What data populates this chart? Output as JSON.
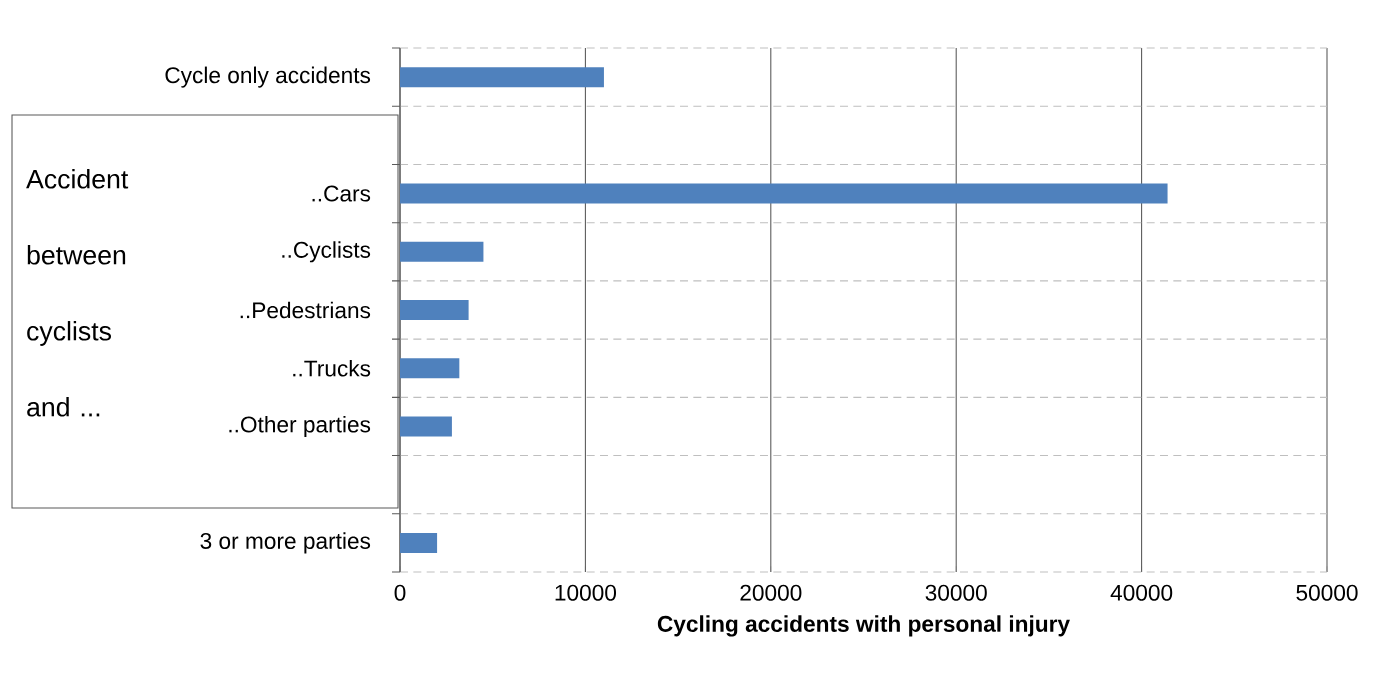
{
  "chart_data": {
    "type": "bar",
    "orientation": "horizontal",
    "categories": [
      "Cycle only accidents",
      null,
      "..Cars",
      "..Cyclists",
      "..Pedestrians",
      "..Trucks",
      "..Other parties",
      null,
      "3 or more parties"
    ],
    "values": [
      11000,
      null,
      41400,
      4500,
      3700,
      3200,
      2800,
      null,
      2000
    ],
    "color": "#4f81bd",
    "xlabel": "Cycling accidents with personal injury",
    "xlim": [
      0,
      50000
    ],
    "xticks": [
      0,
      10000,
      20000,
      30000,
      40000,
      50000
    ],
    "grid": true,
    "annotations": [
      "Accident between cyclists and ..."
    ]
  }
}
